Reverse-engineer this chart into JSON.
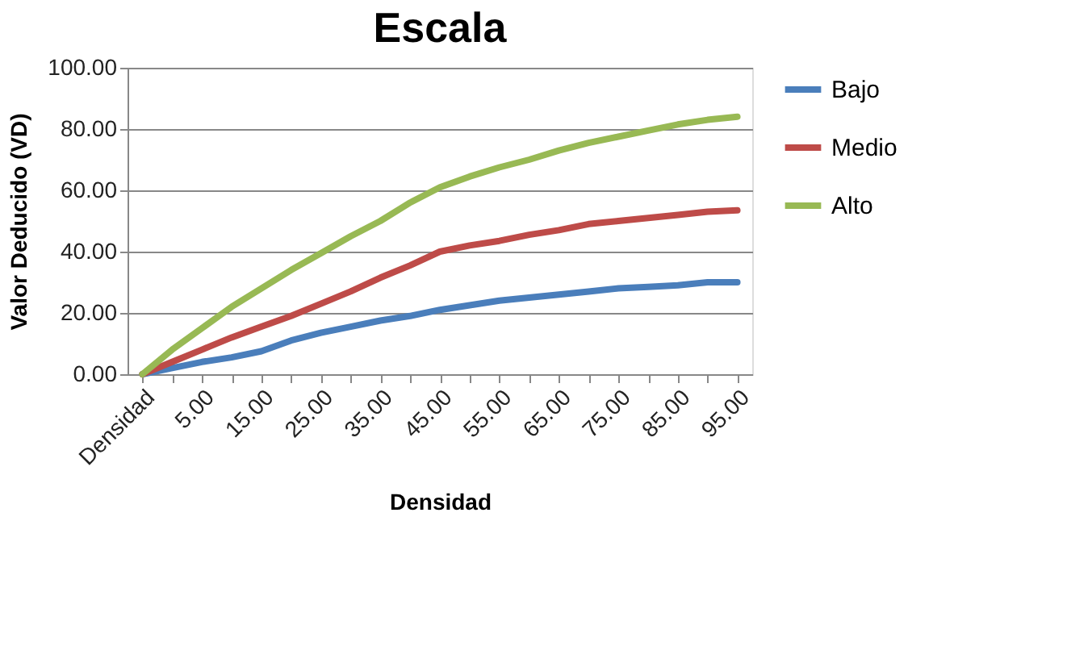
{
  "chart_data": {
    "type": "line",
    "title": "Escala",
    "xlabel": "Densidad",
    "ylabel": "Valor Deducido (VD)",
    "categories": [
      "Densidad",
      null,
      "5.00",
      null,
      "15.00",
      null,
      "25.00",
      null,
      "35.00",
      null,
      "45.00",
      null,
      "55.00",
      null,
      "65.00",
      null,
      "75.00",
      null,
      "85.00",
      null,
      "95.00"
    ],
    "series": [
      {
        "name": "Bajo",
        "color": "#4a7ebb",
        "values": [
          0,
          2,
          4,
          5.5,
          7.5,
          11,
          13.5,
          15.5,
          17.5,
          19,
          21,
          22.5,
          24,
          25,
          26,
          27,
          28,
          28.5,
          29,
          30,
          30
        ]
      },
      {
        "name": "Medio",
        "color": "#be4b48",
        "values": [
          0,
          4,
          8,
          12,
          15.5,
          19,
          23,
          27,
          31.5,
          35.5,
          40,
          42,
          43.5,
          45.5,
          47,
          49,
          50,
          51,
          52,
          53,
          53.5
        ]
      },
      {
        "name": "Alto",
        "color": "#98b954",
        "values": [
          0,
          8,
          15,
          22,
          28,
          34,
          39.5,
          45,
          50,
          56,
          61,
          64.5,
          67.5,
          70,
          73,
          75.5,
          77.5,
          79.5,
          81.5,
          83,
          84
        ]
      }
    ],
    "ylim": [
      0,
      100
    ],
    "yticks": [
      {
        "value": 0,
        "label": "0.00"
      },
      {
        "value": 20,
        "label": "20.00"
      },
      {
        "value": 40,
        "label": "40.00"
      },
      {
        "value": 60,
        "label": "60.00"
      },
      {
        "value": 80,
        "label": "80.00"
      },
      {
        "value": 100,
        "label": "100.00"
      }
    ],
    "grid": "y",
    "legend": "right",
    "marker": "none",
    "line_style": "solid"
  }
}
